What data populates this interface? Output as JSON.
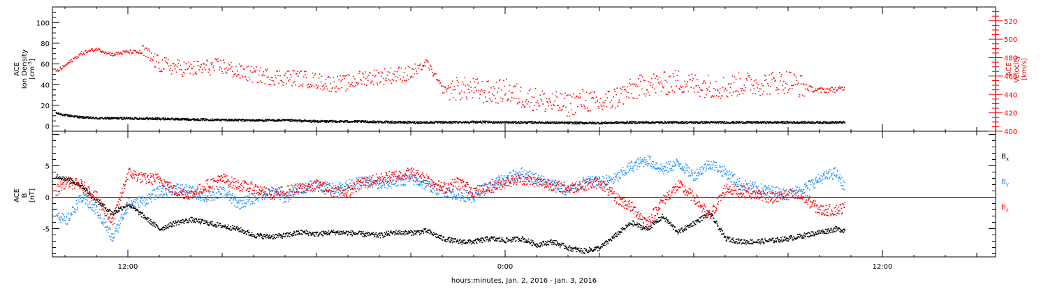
{
  "figure": {
    "xlabel": "hours:minutes, Jan.  2, 2016 - Jan.  3, 2016",
    "x_tick_labels": [
      {
        "hour": 12,
        "label": "12:00"
      },
      {
        "hour": 24,
        "label": "0:00"
      },
      {
        "hour": 36,
        "label": "12:00"
      }
    ],
    "x_range_hours": [
      9.6,
      39.6
    ],
    "data_end_hour": 34.8,
    "colors": {
      "black": "#000000",
      "red": "#ff0000",
      "blue": "#1e90ff"
    }
  },
  "chart_data": [
    {
      "type": "scatter",
      "panel": "plasma",
      "left_axis": {
        "label_lines": [
          "ACE",
          "Ion Density"
        ],
        "unit_base": "[cm",
        "unit_sup": "-3",
        "unit_end": "]",
        "ylim": [
          -5,
          115
        ],
        "ticks": [
          0,
          20,
          40,
          60,
          80,
          100
        ]
      },
      "right_axis": {
        "label_lines": [
          "ACE",
          "Velocity",
          "[km/s]"
        ],
        "ylim": [
          400,
          535
        ],
        "ticks": [
          400,
          420,
          440,
          460,
          480,
          500,
          520
        ]
      },
      "series": [
        {
          "color": "black",
          "axis": "left",
          "points": [
            [
              9.7,
              13
            ],
            [
              10,
              11
            ],
            [
              10.5,
              9
            ],
            [
              11,
              8
            ],
            [
              12,
              8
            ],
            [
              13,
              7.5
            ],
            [
              14,
              7
            ],
            [
              15,
              6.5
            ],
            [
              16,
              6
            ],
            [
              17,
              6
            ],
            [
              18,
              5
            ],
            [
              19,
              5
            ],
            [
              20,
              4.5
            ],
            [
              21,
              4
            ],
            [
              22,
              4
            ],
            [
              23,
              4.5
            ],
            [
              24,
              4
            ],
            [
              25,
              4
            ],
            [
              26,
              3.5
            ],
            [
              27,
              3.5
            ],
            [
              28,
              4
            ],
            [
              29,
              4
            ],
            [
              30,
              4
            ],
            [
              31,
              4
            ],
            [
              32,
              4
            ],
            [
              33,
              4
            ],
            [
              34,
              4
            ],
            [
              34.8,
              4
            ]
          ]
        },
        {
          "color": "red",
          "axis": "right",
          "points": [
            [
              9.7,
              465
            ],
            [
              10,
              472
            ],
            [
              10.5,
              485
            ],
            [
              11,
              490
            ],
            [
              11.5,
              484
            ],
            [
              12,
              487
            ],
            [
              12.5,
              486
            ],
            [
              13,
              473
            ],
            [
              13.5,
              470
            ],
            [
              14,
              468
            ],
            [
              14.5,
              470
            ],
            [
              15,
              471
            ],
            [
              15.5,
              465
            ],
            [
              16,
              462
            ],
            [
              16.5,
              460
            ],
            [
              17,
              459
            ],
            [
              17.5,
              458
            ],
            [
              18,
              455
            ],
            [
              18.5,
              452
            ],
            [
              19,
              453
            ],
            [
              19.5,
              459
            ],
            [
              20,
              460
            ],
            [
              20.5,
              462
            ],
            [
              21,
              463
            ],
            [
              21.5,
              475
            ],
            [
              22,
              446
            ],
            [
              22.5,
              447
            ],
            [
              23,
              446
            ],
            [
              23.5,
              442
            ],
            [
              24,
              445
            ],
            [
              24.5,
              438
            ],
            [
              25,
              435
            ],
            [
              25.5,
              431
            ],
            [
              26,
              429
            ],
            [
              26.5,
              435
            ],
            [
              27,
              430
            ],
            [
              27.5,
              437
            ],
            [
              28,
              445
            ],
            [
              28.5,
              452
            ],
            [
              29,
              452
            ],
            [
              29.5,
              455
            ],
            [
              30,
              451
            ],
            [
              30.5,
              450
            ],
            [
              31,
              448
            ],
            [
              31.5,
              452
            ],
            [
              32,
              452
            ],
            [
              32.5,
              453
            ],
            [
              33,
              455
            ],
            [
              33.5,
              448
            ],
            [
              34,
              445
            ],
            [
              34.5,
              446
            ],
            [
              34.8,
              447
            ]
          ]
        }
      ]
    },
    {
      "type": "scatter",
      "panel": "magnetic",
      "left_axis": {
        "label_lines": [
          "ACE",
          "B"
        ],
        "unit": "[nT]",
        "ylim": [
          -9.5,
          10.5
        ],
        "ticks": [
          -5,
          0,
          5
        ]
      },
      "legend": [
        {
          "base": "B",
          "sub": "x",
          "color": "black"
        },
        {
          "base": "B",
          "sub": "y",
          "color": "blue"
        },
        {
          "base": "B",
          "sub": "z",
          "color": "red"
        }
      ],
      "series": [
        {
          "color": "black",
          "points": [
            [
              9.7,
              3.5
            ],
            [
              10,
              3
            ],
            [
              10.5,
              2
            ],
            [
              11,
              -0.5
            ],
            [
              11.5,
              -2.5
            ],
            [
              12,
              -1
            ],
            [
              12.5,
              -3
            ],
            [
              13,
              -5
            ],
            [
              13.5,
              -4
            ],
            [
              14,
              -3.5
            ],
            [
              14.5,
              -4
            ],
            [
              15,
              -4.5
            ],
            [
              15.5,
              -5
            ],
            [
              16,
              -6
            ],
            [
              16.5,
              -6.2
            ],
            [
              17,
              -6
            ],
            [
              17.5,
              -5.5
            ],
            [
              18,
              -5.8
            ],
            [
              18.5,
              -5.5
            ],
            [
              19,
              -5.6
            ],
            [
              19.5,
              -5.8
            ],
            [
              20,
              -6
            ],
            [
              20.5,
              -5.5
            ],
            [
              21,
              -5.6
            ],
            [
              21.5,
              -5.3
            ],
            [
              22,
              -6.5
            ],
            [
              22.5,
              -7
            ],
            [
              23,
              -7
            ],
            [
              23.5,
              -6.5
            ],
            [
              24,
              -6.8
            ],
            [
              24.5,
              -6.5
            ],
            [
              25,
              -7.5
            ],
            [
              25.5,
              -7
            ],
            [
              26,
              -8
            ],
            [
              26.5,
              -8.5
            ],
            [
              27,
              -8
            ],
            [
              27.5,
              -6
            ],
            [
              28,
              -4
            ],
            [
              28.5,
              -5
            ],
            [
              29,
              -3
            ],
            [
              29.5,
              -5.5
            ],
            [
              30,
              -4
            ],
            [
              30.5,
              -2.5
            ],
            [
              31,
              -6.5
            ],
            [
              31.5,
              -7
            ],
            [
              32,
              -7
            ],
            [
              32.5,
              -6.8
            ],
            [
              33,
              -6.5
            ],
            [
              33.5,
              -6
            ],
            [
              34,
              -5.5
            ],
            [
              34.5,
              -5
            ],
            [
              34.8,
              -5.2
            ]
          ]
        },
        {
          "color": "blue",
          "points": [
            [
              9.7,
              -2
            ],
            [
              10,
              -4
            ],
            [
              10.5,
              0
            ],
            [
              11,
              -2
            ],
            [
              11.5,
              -6.5
            ],
            [
              12,
              -1
            ],
            [
              12.5,
              -0.5
            ],
            [
              13,
              1
            ],
            [
              13.5,
              1.5
            ],
            [
              14,
              1
            ],
            [
              14.5,
              0
            ],
            [
              15,
              1
            ],
            [
              15.5,
              -1
            ],
            [
              16,
              0
            ],
            [
              16.5,
              1
            ],
            [
              17,
              0
            ],
            [
              17.5,
              1.5
            ],
            [
              18,
              2
            ],
            [
              18.5,
              1.5
            ],
            [
              19,
              2
            ],
            [
              19.5,
              2.5
            ],
            [
              20,
              2
            ],
            [
              20.5,
              2.5
            ],
            [
              21,
              3
            ],
            [
              21.5,
              2
            ],
            [
              22,
              1
            ],
            [
              22.5,
              0.5
            ],
            [
              23,
              0
            ],
            [
              23.5,
              2
            ],
            [
              24,
              3
            ],
            [
              24.5,
              4
            ],
            [
              25,
              3
            ],
            [
              25.5,
              2
            ],
            [
              26,
              1
            ],
            [
              26.5,
              2.5
            ],
            [
              27,
              2.5
            ],
            [
              27.5,
              3
            ],
            [
              28,
              5
            ],
            [
              28.5,
              6
            ],
            [
              29,
              4.5
            ],
            [
              29.5,
              5.5
            ],
            [
              30,
              3.5
            ],
            [
              30.5,
              5.5
            ],
            [
              31,
              4
            ],
            [
              31.5,
              2
            ],
            [
              32,
              1.5
            ],
            [
              32.5,
              1
            ],
            [
              33,
              0.5
            ],
            [
              33.5,
              1.5
            ],
            [
              34,
              3
            ],
            [
              34.5,
              4
            ],
            [
              34.8,
              1.5
            ]
          ]
        },
        {
          "color": "red",
          "points": [
            [
              9.7,
              1
            ],
            [
              10,
              2.5
            ],
            [
              10.5,
              2
            ],
            [
              11,
              0
            ],
            [
              11.5,
              -4
            ],
            [
              12,
              4
            ],
            [
              12.5,
              3
            ],
            [
              13,
              3
            ],
            [
              13.5,
              1
            ],
            [
              14,
              0.5
            ],
            [
              14.5,
              2
            ],
            [
              15,
              3
            ],
            [
              15.5,
              2
            ],
            [
              16,
              1.5
            ],
            [
              16.5,
              0.5
            ],
            [
              17,
              1
            ],
            [
              17.5,
              1.5
            ],
            [
              18,
              2
            ],
            [
              18.5,
              1
            ],
            [
              19,
              1
            ],
            [
              19.5,
              2.5
            ],
            [
              20,
              3
            ],
            [
              20.5,
              3.5
            ],
            [
              21,
              4
            ],
            [
              21.5,
              3
            ],
            [
              22,
              1.5
            ],
            [
              22.5,
              2.5
            ],
            [
              23,
              1
            ],
            [
              23.5,
              1.5
            ],
            [
              24,
              2.5
            ],
            [
              24.5,
              3
            ],
            [
              25,
              2.5
            ],
            [
              25.5,
              2
            ],
            [
              26,
              1.5
            ],
            [
              26.5,
              2
            ],
            [
              27,
              2.5
            ],
            [
              27.5,
              0
            ],
            [
              28,
              -1.5
            ],
            [
              28.5,
              -4
            ],
            [
              29,
              -0.5
            ],
            [
              29.5,
              2
            ],
            [
              30,
              0
            ],
            [
              30.5,
              -3
            ],
            [
              31,
              1.5
            ],
            [
              31.5,
              1
            ],
            [
              32,
              0.5
            ],
            [
              32.5,
              0
            ],
            [
              33,
              0.5
            ],
            [
              33.5,
              0
            ],
            [
              34,
              -2
            ],
            [
              34.5,
              -2
            ],
            [
              34.8,
              -1.5
            ]
          ]
        }
      ]
    }
  ]
}
